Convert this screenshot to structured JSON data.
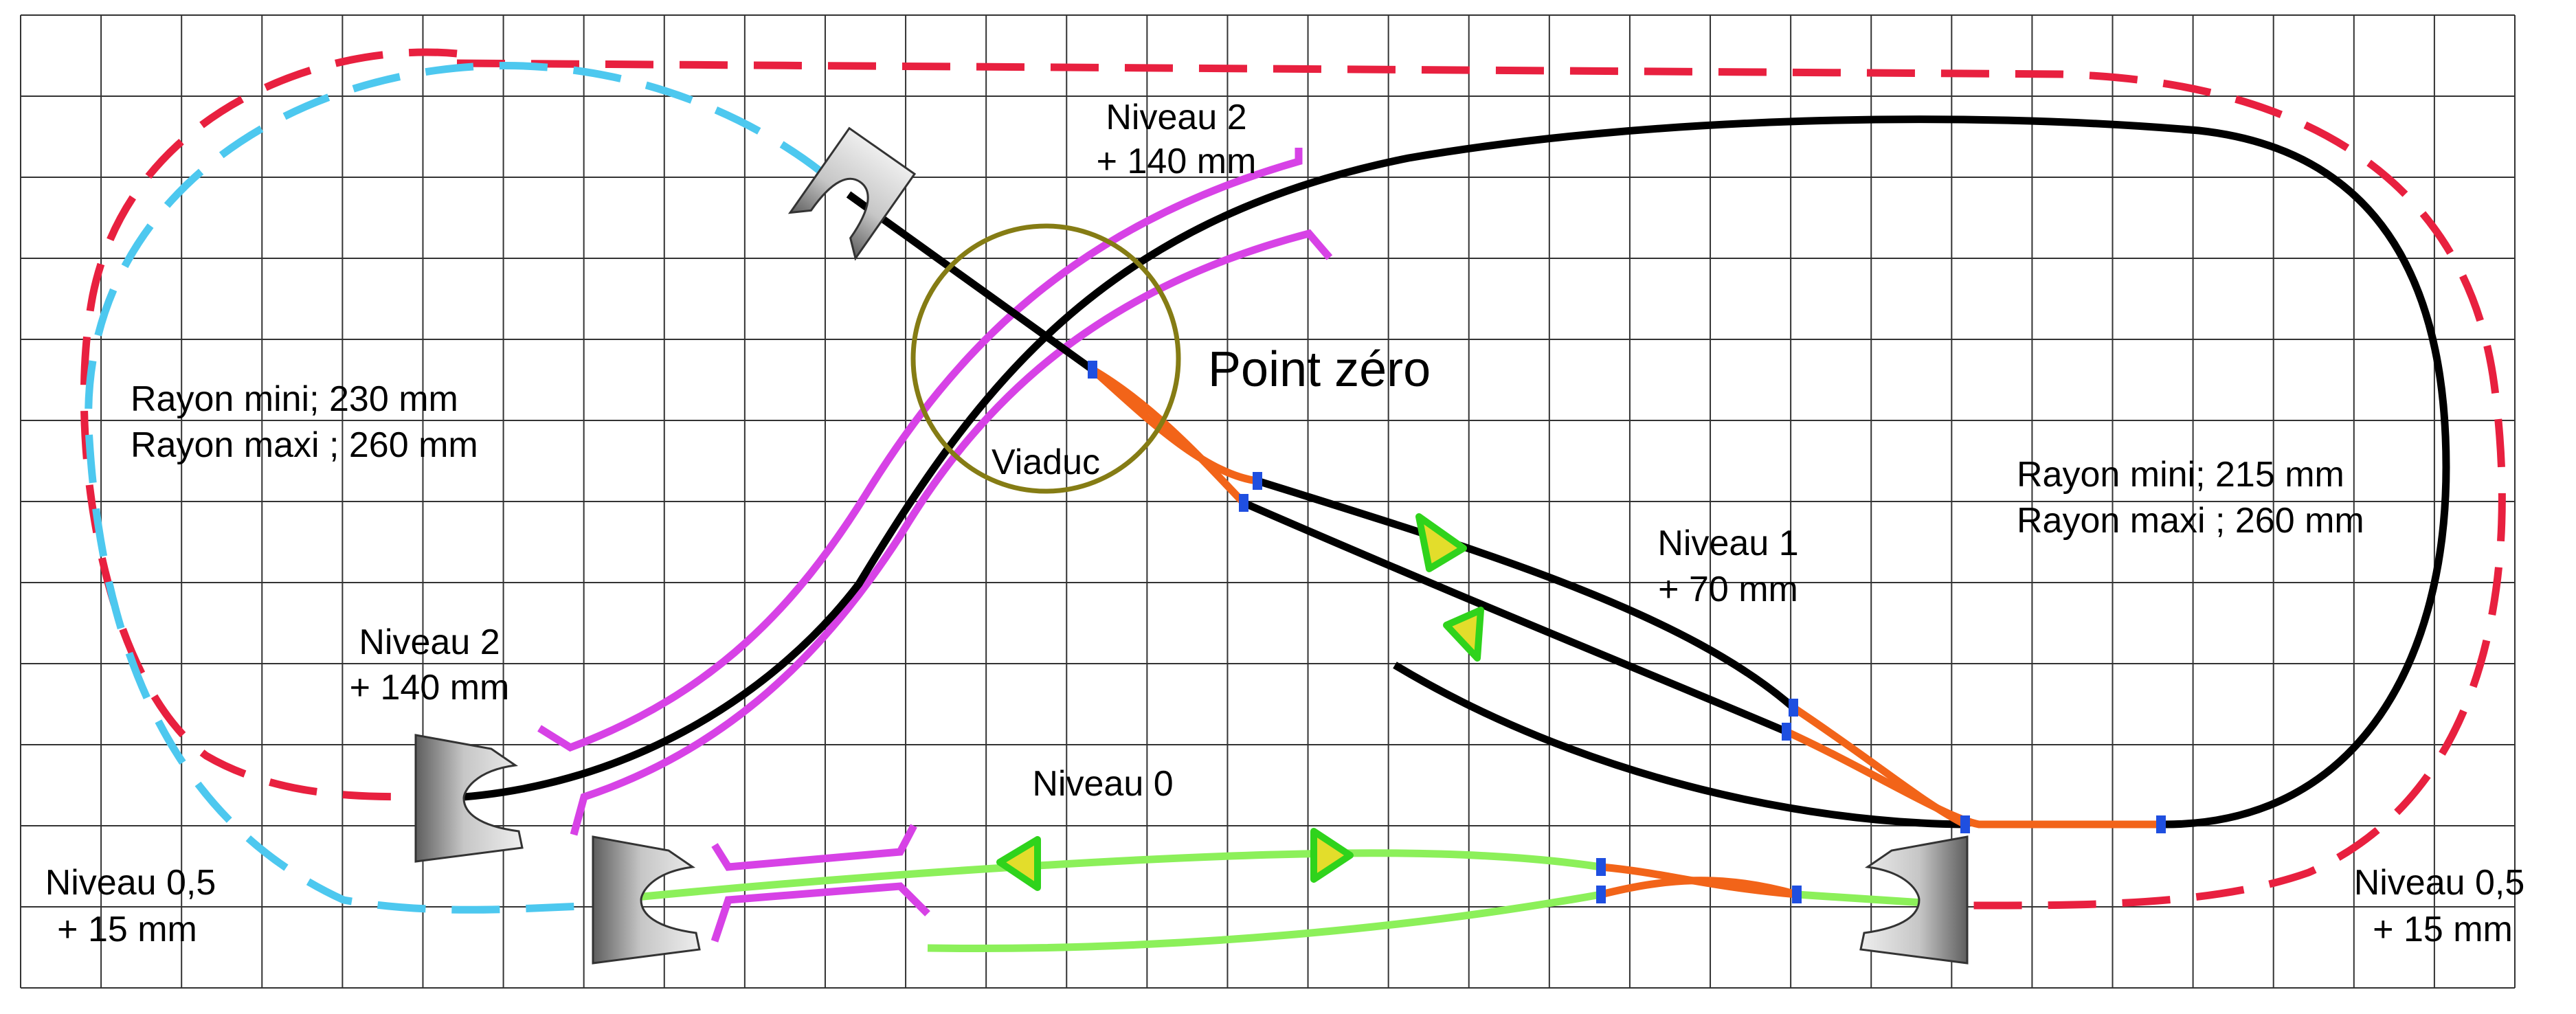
{
  "labels": {
    "point_zero": "Point zéro",
    "viaduc": "Viaduc",
    "level2_top_line1": "Niveau 2",
    "level2_top_line2": "+ 140 mm",
    "level2_left_line1": "Niveau 2",
    "level2_left_line2": "+ 140 mm",
    "level1_line1": "Niveau 1",
    "level1_line2": "+ 70 mm",
    "level0": "Niveau 0",
    "level05_left_line1": "Niveau 0,5",
    "level05_left_line2": "+ 15 mm",
    "level05_right_line1": "Niveau 0,5",
    "level05_right_line2": "+ 15 mm",
    "radius_left_line1": "Rayon mini; 230 mm",
    "radius_left_line2": "Rayon maxi ; 260 mm",
    "radius_right_line1": "Rayon mini; 215 mm",
    "radius_right_line2": "Rayon maxi ; 260 mm"
  },
  "colors": {
    "grid": "#333333",
    "track_level2_guard": "#d742e6",
    "track_main": "#000000",
    "track_turnout": "#f26419",
    "track_level0": "#8cf05a",
    "track_dashed_outer": "#e8203f",
    "track_dashed_inner": "#4dc8ef",
    "viaduct_circle": "#857c14",
    "joint": "#1f4fe0",
    "arrow_fill": "#e3dd2b",
    "arrow_stroke": "#2fd31c",
    "bumper": "#9e9e9e"
  },
  "icons": {
    "bumper": "track-bumper-stop-icon",
    "direction": "direction-arrow-icon",
    "joint": "rail-joint-icon"
  }
}
